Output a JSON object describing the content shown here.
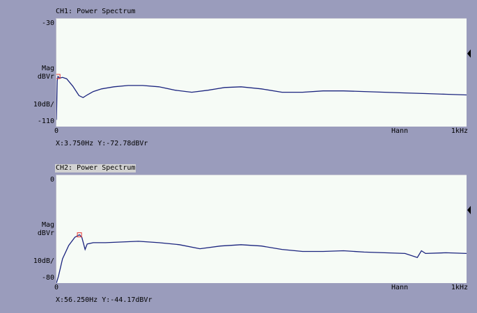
{
  "panels": [
    {
      "title": "CH1: Power Spectrum",
      "y_top": "-30",
      "y_mid1": "Mag",
      "y_mid2": "dBVr",
      "y_scale": "10dB/",
      "y_bottom": "-110",
      "x_start": "0",
      "window": "Hann",
      "x_end": "1kHz",
      "readout": "X:3.750Hz Y:-72.78dBVr",
      "selected": false
    },
    {
      "title": "CH2: Power Spectrum",
      "y_top": "0",
      "y_mid1": "Mag",
      "y_mid2": "dBVr",
      "y_scale": "10dB/",
      "y_bottom": "-80",
      "x_start": "0",
      "window": "Hann",
      "x_end": "1kHz",
      "readout": "X:56.250Hz Y:-44.17dBVr",
      "selected": true
    }
  ],
  "colors": {
    "trace": "#1a237e",
    "cursor": "#e53935",
    "plot_bg": "#f6fbf6",
    "window_bg": "#9a9cbc"
  },
  "chart_data": [
    {
      "type": "line",
      "title": "CH1: Power Spectrum",
      "xlabel": "",
      "ylabel": "Mag dBVr",
      "xlim": [
        0,
        1000
      ],
      "ylim": [
        -110,
        -30
      ],
      "x": [
        0,
        2,
        3.75,
        8,
        15,
        25,
        40,
        55,
        65,
        75,
        90,
        110,
        140,
        175,
        210,
        250,
        290,
        330,
        370,
        410,
        450,
        500,
        550,
        600,
        650,
        700,
        750,
        800,
        850,
        900,
        950,
        1000
      ],
      "y": [
        -105,
        -76,
        -72.78,
        -74,
        -73.5,
        -74.5,
        -80,
        -87,
        -88.5,
        -86.5,
        -84,
        -82,
        -80.5,
        -79.5,
        -79.5,
        -80.5,
        -83,
        -84.5,
        -83,
        -81,
        -80.5,
        -82,
        -84.5,
        -84.5,
        -83.5,
        -83.5,
        -84,
        -84.5,
        -85,
        -85.5,
        -86,
        -86.5
      ],
      "cursor": {
        "x": 3.75,
        "y": -72.78
      }
    },
    {
      "type": "line",
      "title": "CH2: Power Spectrum",
      "xlabel": "",
      "ylabel": "Mag dBVr",
      "xlim": [
        0,
        1000
      ],
      "ylim": [
        -80,
        0
      ],
      "x": [
        0,
        5,
        15,
        30,
        45,
        56.25,
        62,
        70,
        75,
        90,
        120,
        160,
        200,
        250,
        300,
        350,
        400,
        450,
        500,
        550,
        600,
        650,
        700,
        750,
        800,
        850,
        880,
        890,
        900,
        950,
        1000
      ],
      "y": [
        -80,
        -75,
        -62,
        -52,
        -46,
        -44.17,
        -46,
        -55,
        -51,
        -50,
        -50,
        -49.5,
        -49,
        -50,
        -51.5,
        -54.5,
        -52.5,
        -51.5,
        -52.5,
        -55,
        -56.5,
        -56.5,
        -56,
        -57,
        -57.5,
        -58,
        -61,
        -56,
        -58,
        -57.5,
        -58
      ],
      "cursor": {
        "x": 56.25,
        "y": -44.17
      }
    }
  ]
}
